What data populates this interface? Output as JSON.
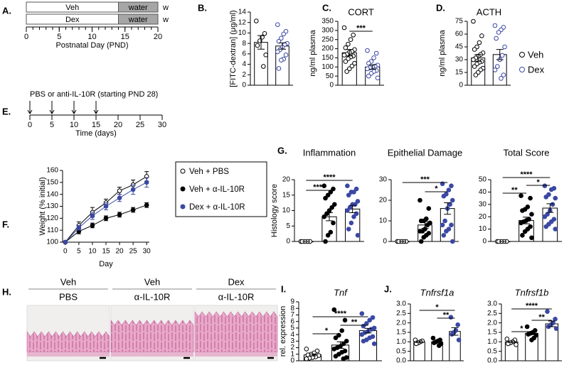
{
  "chart_data": [
    {
      "type": "timeline",
      "panel": "A.",
      "xlim": [
        0,
        20
      ],
      "xticks": [
        0,
        5,
        10,
        15,
        20
      ],
      "minor_xticks": [
        0,
        1,
        2,
        3,
        4,
        5,
        6,
        7,
        8,
        9,
        10,
        11,
        12,
        13,
        14,
        15,
        16,
        17,
        18,
        19,
        20
      ],
      "rows": [
        {
          "end_label": "w",
          "segments": [
            {
              "text": "Veh",
              "start": 0,
              "end": 14,
              "fill": "#ffffff",
              "text_color": "#000000"
            },
            {
              "text": "water",
              "start": 14,
              "end": 20,
              "fill": "#a6a6a6",
              "text_color": "#000000"
            }
          ]
        },
        {
          "end_label": "w",
          "segments": [
            {
              "text": "Dex",
              "start": 0,
              "end": 14,
              "fill": "#ffffff",
              "text_color": "#3a48a4"
            },
            {
              "text": "water",
              "start": 14,
              "end": 20,
              "fill": "#a6a6a6",
              "text_color": "#000000"
            }
          ]
        }
      ],
      "xlabel": "Postnatal Day (PND)"
    },
    {
      "type": "bar",
      "panel": "B.",
      "ylabel": "[FITC-dextran] (μg/ml)",
      "categories": [
        null,
        null
      ],
      "ylim": [
        0,
        14
      ],
      "yticks": [
        0,
        2,
        4,
        6,
        8,
        10,
        12,
        14
      ],
      "values": [
        8.2,
        7.5
      ],
      "errors": [
        1.3,
        0.6
      ],
      "point_colors": [
        "#000000",
        "#3a48a4"
      ],
      "point_filled": [
        false,
        false
      ],
      "points": [
        [
          12.3,
          9.9,
          9.2,
          8.5,
          7.6,
          5.8,
          3.6
        ],
        [
          11.6,
          10.3,
          9.8,
          9.0,
          8.4,
          8.0,
          7.8,
          7.3,
          6.8,
          6.4,
          5.8,
          5.0,
          4.8,
          3.2
        ]
      ],
      "significance": []
    },
    {
      "type": "bar",
      "panel": "C.",
      "title": "CORT",
      "ylabel": "ng/ml plasma",
      "categories": [
        null,
        null
      ],
      "ylim": [
        0,
        350
      ],
      "yticks": [
        0,
        50,
        100,
        150,
        200,
        250,
        300,
        350
      ],
      "values": [
        178,
        100
      ],
      "errors": [
        18,
        12
      ],
      "point_colors": [
        "#000000",
        "#3a48a4"
      ],
      "point_filled": [
        false,
        false
      ],
      "points": [
        [
          315,
          275,
          250,
          225,
          205,
          195,
          185,
          180,
          170,
          165,
          160,
          155,
          145,
          130,
          120,
          105,
          90,
          75
        ],
        [
          190,
          175,
          150,
          130,
          120,
          110,
          105,
          100,
          95,
          90,
          80,
          75,
          65,
          50,
          40
        ]
      ],
      "significance": [
        {
          "from": 0,
          "to": 1,
          "label": "***"
        }
      ]
    },
    {
      "type": "bar",
      "panel": "D.",
      "title": "ACTH",
      "ylabel": "ng/ml plasma",
      "categories": [
        null,
        null
      ],
      "ylim": [
        0,
        75
      ],
      "yticks": [
        0,
        15,
        30,
        45,
        60,
        75
      ],
      "values": [
        32,
        36
      ],
      "errors": [
        4,
        6
      ],
      "point_colors": [
        "#000000",
        "#3a48a4"
      ],
      "point_filled": [
        false,
        false
      ],
      "points": [
        [
          75,
          58,
          50,
          45,
          42,
          38,
          36,
          34,
          32,
          30,
          28,
          27,
          25,
          22,
          20,
          18,
          15,
          12
        ],
        [
          70,
          68,
          65,
          62,
          55,
          45,
          35,
          30,
          22,
          18,
          12,
          8
        ]
      ],
      "significance": [],
      "legend": [
        {
          "name": "Veh",
          "color": "#000000"
        },
        {
          "name": "Dex",
          "color": "#3a48a4"
        }
      ]
    },
    {
      "type": "timeline",
      "panel": "E.",
      "note": "PBS or anti-IL-10R (starting PND 28)",
      "xlim": [
        0,
        30
      ],
      "xticks": [
        0,
        5,
        10,
        15,
        20,
        25,
        30
      ],
      "xtick_colors": [
        "#000000",
        "#000000",
        "#000000",
        "#000000",
        "#000000",
        "#000000",
        "#2e9e3e"
      ],
      "arrows": [
        0,
        5,
        10,
        15
      ],
      "rows": [],
      "xlabel": "Time (days)"
    },
    {
      "type": "line",
      "panel": "F.",
      "ylabel": "Weight (% initial)",
      "xlabel": "Day",
      "x": [
        0,
        5,
        10,
        15,
        20,
        25,
        30
      ],
      "xlim": [
        -1,
        31
      ],
      "xticks": [
        0,
        5,
        10,
        15,
        20,
        25,
        30
      ],
      "ylim": [
        100,
        160
      ],
      "yticks": [
        100,
        110,
        120,
        130,
        140,
        150,
        160
      ],
      "series": [
        {
          "name": "Veh + PBS",
          "color": "#000000",
          "filled": false,
          "values": [
            100,
            114,
            125,
            133,
            143,
            148,
            155
          ],
          "errors": [
            0,
            3,
            4,
            3,
            3,
            4,
            4
          ]
        },
        {
          "name": "Veh + α-IL-10R",
          "color": "#000000",
          "filled": true,
          "values": [
            100,
            109,
            114,
            120,
            123,
            127,
            131
          ],
          "errors": [
            0,
            2,
            2,
            2,
            2,
            2,
            2
          ]
        },
        {
          "name": "Dex + α-IL-10R",
          "color": "#3a48a4",
          "filled": true,
          "values": [
            100,
            112,
            122,
            130,
            137,
            144,
            150
          ],
          "errors": [
            0,
            2,
            3,
            3,
            3,
            4,
            4
          ]
        }
      ]
    },
    {
      "type": "bar",
      "panel": "G.",
      "title": "Inflammation",
      "ylabel": "Histology score",
      "categories": [
        null,
        null,
        null
      ],
      "ylim": [
        0,
        20
      ],
      "yticks": [
        0,
        5,
        10,
        15,
        20
      ],
      "values": [
        0,
        8,
        10.5
      ],
      "errors": [
        0,
        1.3,
        1.2
      ],
      "point_colors": [
        "#000000",
        "#000000",
        "#3a48a4"
      ],
      "point_filled": [
        false,
        true,
        true
      ],
      "points": [
        [
          0,
          0,
          0,
          0,
          0
        ],
        [
          18,
          17,
          16,
          15,
          14,
          12,
          11,
          10,
          9,
          8,
          6,
          3,
          2,
          0
        ],
        [
          18,
          17,
          16,
          16,
          15,
          13,
          12,
          12,
          11,
          10,
          9,
          8,
          6,
          4,
          2
        ]
      ],
      "significance": [
        {
          "from": 0,
          "to": 1,
          "label": "***"
        },
        {
          "from": 0,
          "to": 2,
          "label": "****"
        }
      ]
    },
    {
      "type": "bar",
      "title": "Epithelial Damage",
      "categories": [
        null,
        null,
        null
      ],
      "ylim": [
        0,
        30
      ],
      "yticks": [
        0,
        10,
        20,
        30
      ],
      "values": [
        0,
        8,
        16
      ],
      "errors": [
        0,
        1.6,
        2.8
      ],
      "point_colors": [
        "#000000",
        "#000000",
        "#3a48a4"
      ],
      "point_filled": [
        false,
        true,
        true
      ],
      "points": [
        [
          0,
          0,
          0,
          0,
          0
        ],
        [
          20,
          16,
          11,
          10,
          10,
          9,
          8,
          6,
          5,
          5,
          4,
          3,
          2,
          0
        ],
        [
          28,
          27,
          25,
          23,
          22,
          20,
          18,
          16,
          10,
          8,
          8,
          6,
          5,
          3,
          0
        ]
      ],
      "significance": [
        {
          "from": 1,
          "to": 2,
          "label": "*"
        },
        {
          "from": 0,
          "to": 2,
          "label": "***"
        }
      ]
    },
    {
      "type": "bar",
      "title": "Total Score",
      "categories": [
        null,
        null,
        null
      ],
      "ylim": [
        0,
        50
      ],
      "yticks": [
        0,
        10,
        20,
        30,
        40,
        50
      ],
      "values": [
        0,
        17,
        27
      ],
      "errors": [
        0,
        2.7,
        3.5
      ],
      "point_colors": [
        "#000000",
        "#000000",
        "#3a48a4"
      ],
      "point_filled": [
        false,
        true,
        true
      ],
      "points": [
        [
          0,
          0,
          0,
          0,
          0
        ],
        [
          37,
          35,
          28,
          26,
          25,
          22,
          18,
          17,
          16,
          15,
          12,
          10,
          8,
          5,
          3
        ],
        [
          45,
          43,
          42,
          38,
          36,
          35,
          30,
          25,
          22,
          20,
          18,
          16,
          14,
          12,
          10
        ]
      ],
      "significance": [
        {
          "from": 0,
          "to": 1,
          "label": "**"
        },
        {
          "from": 1,
          "to": 2,
          "label": "*"
        },
        {
          "from": 0,
          "to": 2,
          "label": "****"
        }
      ]
    },
    {
      "type": "images",
      "panel": "H.",
      "columns": [
        {
          "top": "Veh",
          "top_color": "#000000",
          "bottom": "PBS"
        },
        {
          "top": "Veh",
          "top_color": "#000000",
          "bottom": "α-IL-10R"
        },
        {
          "top": "Dex",
          "top_color": "#3a48a4",
          "bottom": "α-IL-10R"
        }
      ]
    },
    {
      "type": "bar",
      "panel": "I.",
      "title": "Tnf",
      "title_style": "italic",
      "ylabel": "rel. expression",
      "categories": [
        null,
        null,
        null
      ],
      "ylim": [
        0,
        9
      ],
      "yticks": [
        0,
        1,
        2,
        3,
        4,
        5,
        6,
        7,
        8,
        9
      ],
      "values": [
        0.9,
        2.4,
        4.6
      ],
      "errors": [
        0.15,
        0.5,
        0.35
      ],
      "point_colors": [
        "#000000",
        "#000000",
        "#3a48a4"
      ],
      "point_filled": [
        false,
        true,
        true
      ],
      "points": [
        [
          1.8,
          1.5,
          1.2,
          1.0,
          0.9,
          0.8,
          0.6,
          0.5,
          0.4,
          0.3
        ],
        [
          7.8,
          6.2,
          4.6,
          3.9,
          3.5,
          3.0,
          2.6,
          2.2,
          2.0,
          1.8,
          1.5,
          1.3,
          1.0,
          0.7,
          0.5,
          0.3
        ],
        [
          7.2,
          6.6,
          6.2,
          5.7,
          5.3,
          5.0,
          4.8,
          4.5,
          4.3,
          4.0,
          3.7,
          3.5,
          3.2,
          3.0,
          2.6
        ]
      ],
      "significance": [
        {
          "from": 0,
          "to": 1,
          "label": "*"
        },
        {
          "from": 1,
          "to": 2,
          "label": "**"
        },
        {
          "from": 0,
          "to": 2,
          "label": "****"
        }
      ]
    },
    {
      "type": "bar",
      "panel": "J.",
      "title": "Tnfrsf1a",
      "title_style": "italic",
      "categories": [
        null,
        null,
        null
      ],
      "ylim": [
        0,
        3
      ],
      "yticks": [
        {
          "value": 0,
          "label": "0.0"
        },
        0.5,
        {
          "value": 1,
          "label": "1.0"
        },
        1.5,
        {
          "value": 2,
          "label": "2.0"
        },
        2.5,
        {
          "value": 3,
          "label": "3.0"
        }
      ],
      "values": [
        1.0,
        1.0,
        1.55
      ],
      "errors": [
        0.04,
        0.05,
        0.2
      ],
      "point_colors": [
        "#000000",
        "#000000",
        "#3a48a4"
      ],
      "point_filled": [
        false,
        true,
        true
      ],
      "points": [
        [
          1.1,
          1.05,
          1.0,
          0.95,
          0.9
        ],
        [
          1.2,
          1.1,
          1.05,
          1.0,
          0.95,
          0.9,
          0.8
        ],
        [
          2.3,
          1.9,
          1.6,
          1.5,
          1.4,
          1.1
        ]
      ],
      "significance": [
        {
          "from": 1,
          "to": 2,
          "label": "**"
        },
        {
          "from": 0,
          "to": 2,
          "label": "*"
        }
      ]
    },
    {
      "type": "bar",
      "title": "Tnfrsf1b",
      "title_style": "italic",
      "categories": [
        null,
        null,
        null
      ],
      "ylim": [
        0,
        3
      ],
      "yticks": [
        {
          "value": 0,
          "label": "0.0"
        },
        0.5,
        {
          "value": 1,
          "label": "1.0"
        },
        1.5,
        {
          "value": 2,
          "label": "2.0"
        },
        2.5,
        {
          "value": 3,
          "label": "3.0"
        }
      ],
      "values": [
        1.0,
        1.45,
        1.95
      ],
      "errors": [
        0.04,
        0.07,
        0.15
      ],
      "point_colors": [
        "#000000",
        "#000000",
        "#3a48a4"
      ],
      "point_filled": [
        false,
        true,
        true
      ],
      "points": [
        [
          1.15,
          1.1,
          1.0,
          0.95,
          0.9,
          0.85
        ],
        [
          1.8,
          1.6,
          1.5,
          1.45,
          1.4,
          1.35,
          1.2,
          1.1
        ],
        [
          2.6,
          2.2,
          2.0,
          1.9,
          1.8,
          1.7
        ]
      ],
      "significance": [
        {
          "from": 0,
          "to": 1,
          "label": "*"
        },
        {
          "from": 1,
          "to": 2,
          "label": "**"
        },
        {
          "from": 0,
          "to": 2,
          "label": "****"
        }
      ]
    }
  ]
}
